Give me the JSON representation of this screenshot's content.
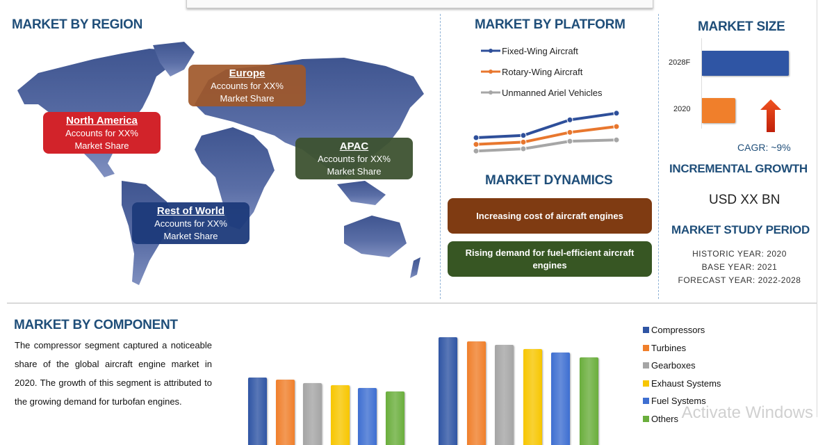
{
  "region": {
    "title": "MARKET BY REGION",
    "callouts": [
      {
        "name": "North America",
        "line1": "Accounts for XX%",
        "line2": "Market Share",
        "color": "#d2232a"
      },
      {
        "name": "Europe",
        "line1": "Accounts for XX%",
        "line2": "Market Share",
        "color": "#a0582a"
      },
      {
        "name": "APAC",
        "line1": "Accounts for XX%",
        "line2": "Market Share",
        "color": "#3d5230"
      },
      {
        "name": "Rest of World",
        "line1": "Accounts for XX%",
        "line2": "Market Share",
        "color": "#1c3a7a"
      }
    ]
  },
  "platform": {
    "title": "MARKET BY PLATFORM"
  },
  "dynamics": {
    "title": "MARKET DYNAMICS",
    "items": [
      {
        "text": "Increasing cost of aircraft engines",
        "color": "#7f3b12"
      },
      {
        "text": "Rising demand for fuel-efficient aircraft engines",
        "color": "#375623"
      }
    ]
  },
  "size": {
    "title": "MARKET SIZE",
    "cagr": "CAGR:  ~9%",
    "incremental_title": "INCREMENTAL GROWTH",
    "incremental_value": "USD XX BN",
    "period_title": "MARKET STUDY PERIOD",
    "historic": "HISTORIC YEAR: 2020",
    "base": "BASE YEAR: 2021",
    "forecast": "FORECAST YEAR: 2022-2028"
  },
  "component": {
    "title": "MARKET BY COMPONENT",
    "description": "The compressor segment captured a noticeable share of the global aircraft engine market in 2020. The growth of this segment is attributed to the growing demand for turbofan engines."
  },
  "watermark": "Activate Windows",
  "chart_data": [
    {
      "type": "line",
      "series": [
        {
          "name": "Fixed-Wing Aircraft",
          "color": "#2e4f9a",
          "values": [
            10,
            10.5,
            14,
            15.5
          ]
        },
        {
          "name": "Rotary-Wing Aircraft",
          "color": "#e8772e",
          "values": [
            8.5,
            9,
            11.2,
            12.5
          ]
        },
        {
          "name": "Unmanned Ariel Vehicles",
          "color": "#a6a6a6",
          "values": [
            7,
            7.5,
            9.2,
            9.5
          ]
        }
      ],
      "legend": "top"
    },
    {
      "type": "bar",
      "orientation": "horizontal",
      "categories": [
        "2028F",
        "2020"
      ],
      "values": [
        100,
        38
      ],
      "colors": [
        "#2f55a4",
        "#f07f2b"
      ]
    },
    {
      "type": "bar",
      "series": [
        {
          "name": "Compressors",
          "color": "#2f55a4",
          "values": [
            97,
            155
          ]
        },
        {
          "name": "Turbines",
          "color": "#f07f2b",
          "values": [
            94,
            149
          ]
        },
        {
          "name": "Gearboxes",
          "color": "#a5a5a5",
          "values": [
            89,
            144
          ]
        },
        {
          "name": "Exhaust Systems",
          "color": "#f7c600",
          "values": [
            86,
            138
          ]
        },
        {
          "name": "Fuel Systems",
          "color": "#3e6fd1",
          "values": [
            82,
            133
          ]
        },
        {
          "name": "Others",
          "color": "#6aae3c",
          "values": [
            77,
            126
          ]
        }
      ],
      "legend": "right"
    }
  ]
}
